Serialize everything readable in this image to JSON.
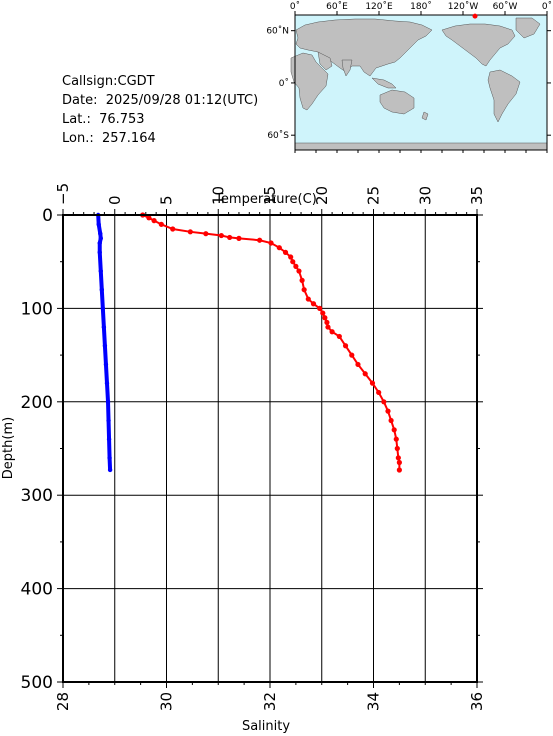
{
  "header": {
    "callsign": "Callsign:CGDT",
    "date": "Date:  2025/09/28 01:12(UTC)",
    "lat": "Lat.:  76.753",
    "lon": "Lon.:  257.164"
  },
  "map": {
    "top_ticks": [
      "0˚",
      "60˚E",
      "120˚E",
      "180˚",
      "120˚W",
      "60˚W",
      "0˚"
    ],
    "left_ticks": [
      "60˚N",
      "0˚",
      "60˚S"
    ],
    "station_lat": 76.753,
    "station_lon": 257.164,
    "colors": {
      "ocean": "#cff4fb",
      "land": "#bfbfbf",
      "marker": "#ff0000"
    }
  },
  "chart_data": {
    "type": "line",
    "top_axis": {
      "label": "Temperature(C)",
      "lim": [
        -5,
        35
      ],
      "ticks": [
        "−5",
        "0",
        "5",
        "10",
        "15",
        "20",
        "25",
        "30",
        "35"
      ]
    },
    "bottom_axis": {
      "label": "Salinity",
      "lim": [
        28,
        36
      ],
      "ticks": [
        "28",
        "30",
        "32",
        "34",
        "36"
      ]
    },
    "y_axis": {
      "label": "Depth(m)",
      "lim": [
        0,
        500
      ],
      "inverted": true,
      "ticks": [
        "0",
        "100",
        "200",
        "300",
        "400",
        "500"
      ]
    },
    "grid": true,
    "series": [
      {
        "axis": "salinity",
        "color": "#0000ff",
        "depth": [
          0,
          10,
          20,
          25,
          30,
          40,
          60,
          80,
          100,
          120,
          140,
          160,
          180,
          200,
          220,
          240,
          260,
          273
        ],
        "values": [
          28.68,
          28.69,
          28.72,
          28.73,
          28.71,
          28.71,
          28.73,
          28.75,
          28.77,
          28.79,
          28.81,
          28.83,
          28.85,
          28.87,
          28.88,
          28.89,
          28.9,
          28.91
        ]
      },
      {
        "axis": "temperature",
        "color": "#ff0000",
        "depth": [
          0,
          3,
          6,
          10,
          15,
          18,
          20,
          22,
          24,
          25,
          27,
          30,
          35,
          40,
          45,
          50,
          55,
          60,
          70,
          80,
          90,
          95,
          100,
          105,
          110,
          115,
          120,
          125,
          130,
          140,
          150,
          160,
          170,
          180,
          190,
          200,
          210,
          220,
          230,
          240,
          250,
          260,
          265,
          273
        ],
        "values": [
          2.7,
          3.3,
          3.8,
          4.5,
          5.6,
          7.3,
          8.8,
          10.3,
          11.1,
          12.0,
          14.0,
          15.1,
          15.9,
          16.5,
          17.0,
          17.2,
          17.5,
          17.8,
          18.1,
          18.3,
          18.7,
          19.2,
          19.8,
          20.1,
          20.3,
          20.5,
          20.6,
          21.0,
          21.7,
          22.3,
          22.9,
          23.5,
          24.2,
          24.9,
          25.5,
          26.0,
          26.4,
          26.7,
          27.0,
          27.2,
          27.3,
          27.4,
          27.5,
          27.5
        ]
      }
    ]
  }
}
